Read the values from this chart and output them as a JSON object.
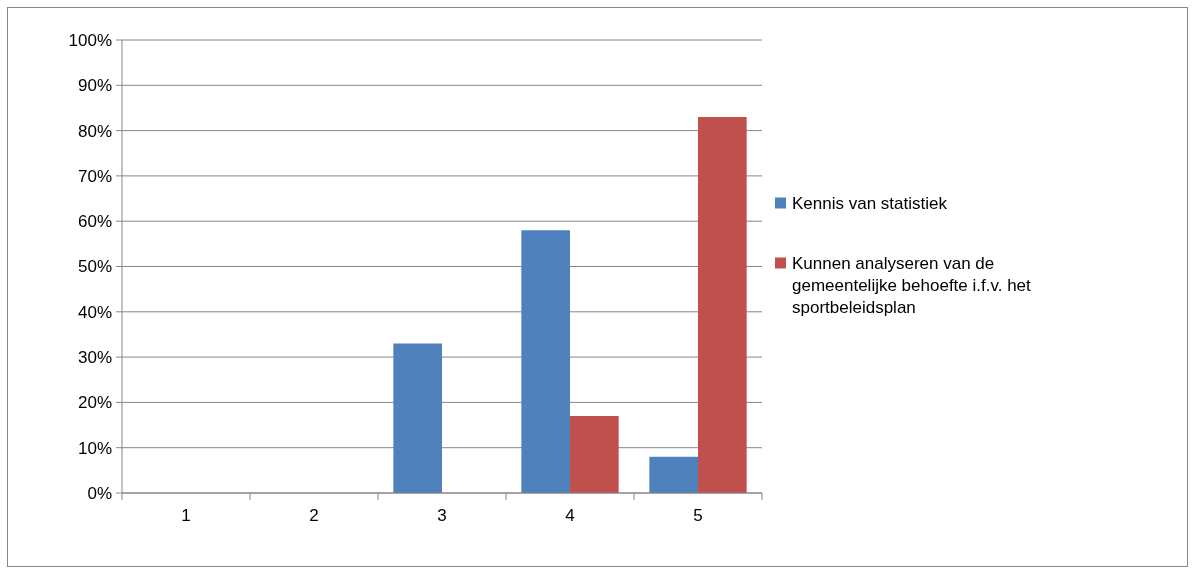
{
  "chart_data": {
    "type": "bar",
    "categories": [
      "1",
      "2",
      "3",
      "4",
      "5"
    ],
    "series": [
      {
        "name": "Kennis van statistiek",
        "color": "#4f81bd",
        "values": [
          0,
          0,
          33,
          58,
          8
        ]
      },
      {
        "name": "Kunnen analyseren van de gemeentelijke behoefte i.f.v. het sportbeleidsplan",
        "color": "#c0504d",
        "values": [
          0,
          0,
          0,
          17,
          83
        ]
      }
    ],
    "ylim": [
      0,
      100
    ],
    "yticks": [
      {
        "value": 0,
        "label": "0%"
      },
      {
        "value": 10,
        "label": "10%"
      },
      {
        "value": 20,
        "label": "20%"
      },
      {
        "value": 30,
        "label": "30%"
      },
      {
        "value": 40,
        "label": "40%"
      },
      {
        "value": 50,
        "label": "50%"
      },
      {
        "value": 60,
        "label": "60%"
      },
      {
        "value": 70,
        "label": "70%"
      },
      {
        "value": 80,
        "label": "80%"
      },
      {
        "value": 90,
        "label": "90%"
      },
      {
        "value": 100,
        "label": "100%"
      }
    ],
    "grid": "y",
    "legend": "right"
  }
}
